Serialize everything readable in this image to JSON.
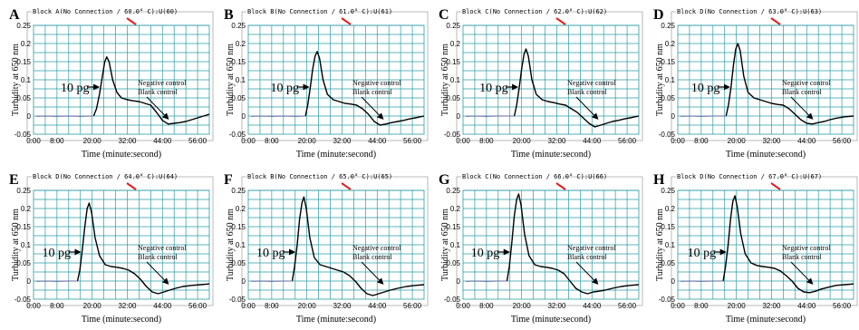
{
  "figure": {
    "accent_color": "#e02020",
    "grid_color": "#2a9da4",
    "curve_color": "#000000",
    "baseline_color": "#6a6aa0"
  },
  "chart_data": [
    {
      "type": "line",
      "panel_label": "A",
      "block_title": "Block A(No Connection / 60.0° C):U(60)",
      "xlabel": "Time (minute:second)",
      "ylabel": "Turbidity at 650 nm",
      "x_ticks": [
        "0:00",
        "8:00",
        "20:00",
        "32:00",
        "44:00",
        "56:00"
      ],
      "y_ticks": [
        "0.25",
        "0.2",
        "0.15",
        "0.1",
        "0.05",
        "0",
        "-0.05"
      ],
      "ylim": [
        -0.05,
        0.25
      ],
      "xlim_min": [
        0,
        60
      ],
      "annotations": {
        "sample": "10 pg",
        "negative": "Negative control",
        "blank": "Blank control"
      },
      "series": [
        {
          "role": "sample",
          "x": [
            20.5,
            21.5,
            22.5,
            23.5,
            24.3,
            25,
            25.8,
            27,
            28.5,
            30,
            32,
            34,
            36,
            38,
            40,
            42,
            44,
            46,
            48,
            50,
            52,
            54,
            56,
            58,
            60
          ],
          "y": [
            0,
            0.02,
            0.06,
            0.11,
            0.15,
            0.163,
            0.15,
            0.1,
            0.065,
            0.05,
            0.045,
            0.042,
            0.04,
            0.035,
            0.03,
            0.01,
            -0.012,
            -0.022,
            -0.02,
            -0.018,
            -0.015,
            -0.01,
            -0.005,
            0.0,
            0.005
          ]
        },
        {
          "role": "control",
          "x": [
            1,
            4,
            8,
            12,
            16,
            20
          ],
          "y": [
            -0.001,
            0.0,
            -0.001,
            0.0,
            -0.001,
            0.0
          ]
        }
      ]
    },
    {
      "type": "line",
      "panel_label": "B",
      "block_title": "Block B(No Connection / 61.0° C):U(61)",
      "xlabel": "Time (minute:second)",
      "ylabel": "Turbidity at 650 nm",
      "x_ticks": [
        "0:00",
        "8:00",
        "20:00",
        "32:00",
        "44:00",
        "56:00"
      ],
      "y_ticks": [
        "0.25",
        "0.2",
        "0.15",
        "0.1",
        "0.05",
        "0",
        "-0.05"
      ],
      "ylim": [
        -0.05,
        0.25
      ],
      "xlim_min": [
        0,
        60
      ],
      "annotations": {
        "sample": "10 pg",
        "negative": "Negative control",
        "blank": "Blank control"
      },
      "series": [
        {
          "role": "sample",
          "x": [
            19.5,
            20.3,
            21.2,
            22,
            22.8,
            23.5,
            24.3,
            25.5,
            27,
            29,
            31,
            33,
            35,
            37,
            39,
            41,
            43,
            45,
            47,
            49,
            51,
            53,
            55,
            57,
            60
          ],
          "y": [
            0,
            0.03,
            0.08,
            0.13,
            0.165,
            0.178,
            0.16,
            0.1,
            0.06,
            0.045,
            0.04,
            0.035,
            0.033,
            0.03,
            0.02,
            0.005,
            -0.015,
            -0.025,
            -0.022,
            -0.018,
            -0.015,
            -0.012,
            -0.008,
            -0.005,
            0.0
          ]
        },
        {
          "role": "control",
          "x": [
            1,
            4,
            8,
            12,
            16,
            19.5
          ],
          "y": [
            -0.001,
            0.0,
            -0.001,
            0.0,
            -0.001,
            0.0
          ]
        }
      ]
    },
    {
      "type": "line",
      "panel_label": "C",
      "block_title": "Block C(No Connection / 62.0° C):U(62)",
      "xlabel": "Time (minute:second)",
      "ylabel": "Turbidity at 650 nm",
      "x_ticks": [
        "0:00",
        "8:00",
        "20:00",
        "32:00",
        "44:00",
        "56:00"
      ],
      "y_ticks": [
        "0.25",
        "0.2",
        "0.15",
        "0.1",
        "0.05",
        "0",
        "-0.05"
      ],
      "ylim": [
        -0.05,
        0.25
      ],
      "xlim_min": [
        0,
        60
      ],
      "annotations": {
        "sample": "10 pg",
        "negative": "Negative control",
        "blank": "Blank control"
      },
      "series": [
        {
          "role": "sample",
          "x": [
            17.5,
            18.3,
            19.2,
            20,
            20.8,
            21.5,
            22.3,
            23.5,
            25,
            27,
            29,
            31,
            33,
            35,
            37,
            39,
            41,
            43,
            45,
            47,
            49,
            51,
            53,
            55,
            57,
            60
          ],
          "y": [
            0,
            0.03,
            0.08,
            0.13,
            0.17,
            0.185,
            0.165,
            0.1,
            0.06,
            0.045,
            0.04,
            0.037,
            0.033,
            0.03,
            0.02,
            0.01,
            -0.005,
            -0.02,
            -0.03,
            -0.025,
            -0.02,
            -0.015,
            -0.012,
            -0.008,
            -0.005,
            0.0
          ]
        },
        {
          "role": "control",
          "x": [
            1,
            4,
            8,
            12,
            17.5
          ],
          "y": [
            -0.001,
            0.0,
            -0.001,
            0.0,
            0.0
          ]
        }
      ]
    },
    {
      "type": "line",
      "panel_label": "D",
      "block_title": "Block D(No Connection / 63.0° C):U(63)",
      "xlabel": "Time (minute:second)",
      "ylabel": "Turbidity at 650 nm",
      "x_ticks": [
        "0:00",
        "8:00",
        "20:00",
        "32:00",
        "44:00",
        "56:00"
      ],
      "y_ticks": [
        "0.25",
        "0.2",
        "0.15",
        "0.1",
        "0.05",
        "0",
        "-0.05"
      ],
      "ylim": [
        -0.05,
        0.25
      ],
      "xlim_min": [
        0,
        60
      ],
      "annotations": {
        "sample": "10 pg",
        "negative": "Negative control",
        "blank": "Blank control"
      },
      "series": [
        {
          "role": "sample",
          "x": [
            16.5,
            17.3,
            18.2,
            19,
            19.8,
            20.5,
            21.3,
            22.5,
            24,
            26,
            28,
            30,
            32,
            34,
            36,
            38,
            40,
            42,
            44,
            46,
            48,
            50,
            52,
            54,
            57,
            60
          ],
          "y": [
            0,
            0.03,
            0.08,
            0.14,
            0.185,
            0.2,
            0.18,
            0.11,
            0.065,
            0.05,
            0.045,
            0.04,
            0.035,
            0.032,
            0.03,
            0.02,
            0.005,
            -0.01,
            -0.02,
            -0.022,
            -0.018,
            -0.015,
            -0.01,
            -0.006,
            -0.002,
            0.0
          ]
        },
        {
          "role": "control",
          "x": [
            1,
            4,
            8,
            12,
            16.5
          ],
          "y": [
            -0.001,
            0.0,
            -0.001,
            0.0,
            0.0
          ]
        }
      ]
    },
    {
      "type": "line",
      "panel_label": "E",
      "block_title": "Block D(No Connection / 64.0° C):U(64)",
      "xlabel": "Time (minute:second)",
      "ylabel": "Turbidity at 650 nm",
      "x_ticks": [
        "0:00",
        "8:00",
        "20:00",
        "32:00",
        "44:00",
        "56:00"
      ],
      "y_ticks": [
        "0.25",
        "0.2",
        "0.15",
        "0.1",
        "0.05",
        "0",
        "-0.05"
      ],
      "ylim": [
        -0.05,
        0.25
      ],
      "xlim_min": [
        0,
        60
      ],
      "annotations": {
        "sample": "10 pg",
        "negative": "Negative control",
        "blank": "Blank control"
      },
      "series": [
        {
          "role": "sample",
          "x": [
            15,
            15.8,
            16.7,
            17.5,
            18.3,
            19,
            19.8,
            21,
            22.5,
            24.5,
            26.5,
            28.5,
            30.5,
            32.5,
            34.5,
            36.5,
            38.5,
            40.5,
            42.5,
            44.5,
            46.5,
            48.5,
            51,
            54,
            57,
            60
          ],
          "y": [
            0,
            0.03,
            0.09,
            0.15,
            0.2,
            0.215,
            0.19,
            0.12,
            0.07,
            0.045,
            0.04,
            0.038,
            0.035,
            0.03,
            0.02,
            0.005,
            -0.015,
            -0.03,
            -0.035,
            -0.03,
            -0.025,
            -0.02,
            -0.015,
            -0.012,
            -0.01,
            -0.008
          ]
        },
        {
          "role": "control",
          "x": [
            1,
            4,
            8,
            12,
            15
          ],
          "y": [
            -0.001,
            0.0,
            -0.001,
            0.0,
            0.0
          ]
        }
      ]
    },
    {
      "type": "line",
      "panel_label": "F",
      "block_title": "Block B(No Connection / 65.0° C):U(65)",
      "xlabel": "Time (minute:second)",
      "ylabel": "Turbidity at 650 nm",
      "x_ticks": [
        "0:00",
        "8:00",
        "20:00",
        "32:00",
        "44:00",
        "56:00"
      ],
      "y_ticks": [
        "0.25",
        "0.2",
        "0.15",
        "0.1",
        "0.05",
        "0",
        "-0.05"
      ],
      "ylim": [
        -0.05,
        0.25
      ],
      "xlim_min": [
        0,
        60
      ],
      "annotations": {
        "sample": "10 pg",
        "negative": "Negative control",
        "blank": "Blank control"
      },
      "series": [
        {
          "role": "sample",
          "x": [
            15,
            15.8,
            16.7,
            17.5,
            18.3,
            19,
            19.8,
            21,
            22.5,
            24.5,
            26.5,
            28.5,
            30.5,
            32.5,
            34.5,
            36.5,
            38.5,
            40.5,
            42.5,
            44.5,
            46.5,
            48.5,
            51,
            54,
            57,
            60
          ],
          "y": [
            0,
            0.04,
            0.1,
            0.17,
            0.215,
            0.232,
            0.2,
            0.12,
            0.065,
            0.045,
            0.04,
            0.035,
            0.03,
            0.025,
            0.015,
            0.0,
            -0.02,
            -0.035,
            -0.04,
            -0.035,
            -0.03,
            -0.025,
            -0.02,
            -0.015,
            -0.012,
            -0.01
          ]
        },
        {
          "role": "control",
          "x": [
            1,
            4,
            8,
            12,
            15
          ],
          "y": [
            -0.001,
            0.0,
            -0.001,
            0.0,
            0.0
          ]
        }
      ]
    },
    {
      "type": "line",
      "panel_label": "G",
      "block_title": "Block C(No Connection / 66.0° C):U(66)",
      "xlabel": "Time (minute:second)",
      "ylabel": "Turbidity at 650 nm",
      "x_ticks": [
        "0:00",
        "8:00",
        "20:00",
        "32:00",
        "44:00",
        "56:00"
      ],
      "y_ticks": [
        "0.25",
        "0.2",
        "0.15",
        "0.1",
        "0.05",
        "0",
        "-0.05"
      ],
      "ylim": [
        -0.05,
        0.25
      ],
      "xlim_min": [
        0,
        60
      ],
      "annotations": {
        "sample": "10 pg",
        "negative": "Negative control",
        "blank": "Blank control"
      },
      "series": [
        {
          "role": "sample",
          "x": [
            15,
            15.8,
            16.7,
            17.5,
            18.3,
            19,
            19.8,
            21,
            22.5,
            24.5,
            26.5,
            28.5,
            30.5,
            32.5,
            34.5,
            36.5,
            38.5,
            40.5,
            42.5,
            44.5,
            46.5,
            48.5,
            51,
            54,
            57,
            60
          ],
          "y": [
            0,
            0.04,
            0.11,
            0.18,
            0.225,
            0.24,
            0.21,
            0.13,
            0.07,
            0.045,
            0.04,
            0.038,
            0.035,
            0.03,
            0.02,
            0.0,
            -0.02,
            -0.03,
            -0.035,
            -0.03,
            -0.028,
            -0.025,
            -0.02,
            -0.015,
            -0.012,
            -0.01
          ]
        },
        {
          "role": "control",
          "x": [
            1,
            4,
            8,
            12,
            15
          ],
          "y": [
            -0.001,
            0.0,
            -0.001,
            0.0,
            0.0
          ]
        }
      ]
    },
    {
      "type": "line",
      "panel_label": "H",
      "block_title": "Block D(No Connection / 67.0° C):U(67)",
      "xlabel": "Time (minute:second)",
      "ylabel": "Turbidity at 650 nm",
      "x_ticks": [
        "0:00",
        "8:00",
        "20:00",
        "32:00",
        "44:00",
        "56:00"
      ],
      "y_ticks": [
        "0.25",
        "0.2",
        "0.15",
        "0.1",
        "0.05",
        "0",
        "-0.05"
      ],
      "ylim": [
        -0.05,
        0.25
      ],
      "xlim_min": [
        0,
        60
      ],
      "annotations": {
        "sample": "10 pg",
        "negative": "Negative control",
        "blank": "Blank control"
      },
      "series": [
        {
          "role": "sample",
          "x": [
            15.5,
            16.3,
            17.2,
            18,
            18.8,
            19.5,
            20.3,
            21.5,
            23,
            25,
            27,
            29,
            31,
            33,
            35,
            37,
            39,
            41,
            43,
            45,
            47,
            49,
            51,
            54,
            57,
            60
          ],
          "y": [
            0,
            0.04,
            0.1,
            0.17,
            0.22,
            0.235,
            0.205,
            0.13,
            0.075,
            0.05,
            0.043,
            0.04,
            0.038,
            0.035,
            0.028,
            0.015,
            0.0,
            -0.02,
            -0.03,
            -0.032,
            -0.028,
            -0.022,
            -0.018,
            -0.012,
            -0.01,
            -0.008
          ]
        },
        {
          "role": "control",
          "x": [
            1,
            4,
            8,
            12,
            15.5
          ],
          "y": [
            -0.001,
            0.0,
            -0.001,
            0.0,
            0.0
          ]
        }
      ]
    }
  ]
}
